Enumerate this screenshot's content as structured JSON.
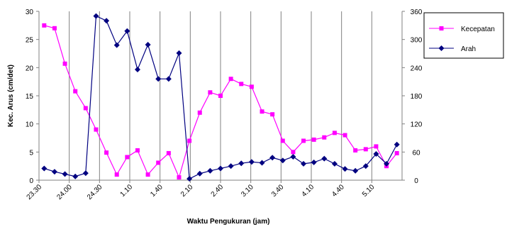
{
  "chart_data": {
    "type": "line",
    "xlabel": "Waktu Pengukuran  (jam)",
    "ylabel": "Kec. Arus (cm/det)",
    "ylim": [
      0,
      30
    ],
    "y_ticks": [
      "0",
      "5",
      "10",
      "15",
      "20",
      "25",
      "30"
    ],
    "y2lim": [
      0,
      360
    ],
    "y2_ticks": [
      "0",
      "60",
      "120",
      "180",
      "240",
      "300",
      "360"
    ],
    "x_tick_labels": [
      "23.30",
      "24.00",
      "24.30",
      "1.10",
      "1.40",
      "2.10",
      "2.40",
      "3.10",
      "3.40",
      "4.10",
      "4.40",
      "5.10"
    ],
    "grid": "vertical",
    "legend_position": "right",
    "series": [
      {
        "name": "Kecepatan",
        "axis": "left",
        "color": "#ff00ff",
        "marker": "square",
        "values": [
          27.5,
          27,
          20.7,
          15.8,
          12.8,
          9,
          4.9,
          1,
          4.1,
          5.3,
          1,
          3.1,
          4.8,
          0.5,
          7,
          12,
          15.6,
          15,
          18,
          17.1,
          16.6,
          12.2,
          11.7,
          7,
          5,
          7,
          7.2,
          7.6,
          8.4,
          8,
          5.3,
          5.5,
          6,
          2.5,
          4.8
        ]
      },
      {
        "name": "Arah",
        "axis": "right",
        "color": "#000080",
        "marker": "diamond",
        "values": [
          25,
          18,
          13,
          8,
          15,
          350,
          340,
          288,
          318,
          236,
          289,
          216,
          216,
          271,
          3,
          14,
          20,
          25,
          30,
          36,
          39,
          37,
          48,
          42,
          50,
          35,
          38,
          46,
          35,
          24,
          20,
          30,
          56,
          35,
          76
        ]
      }
    ]
  }
}
